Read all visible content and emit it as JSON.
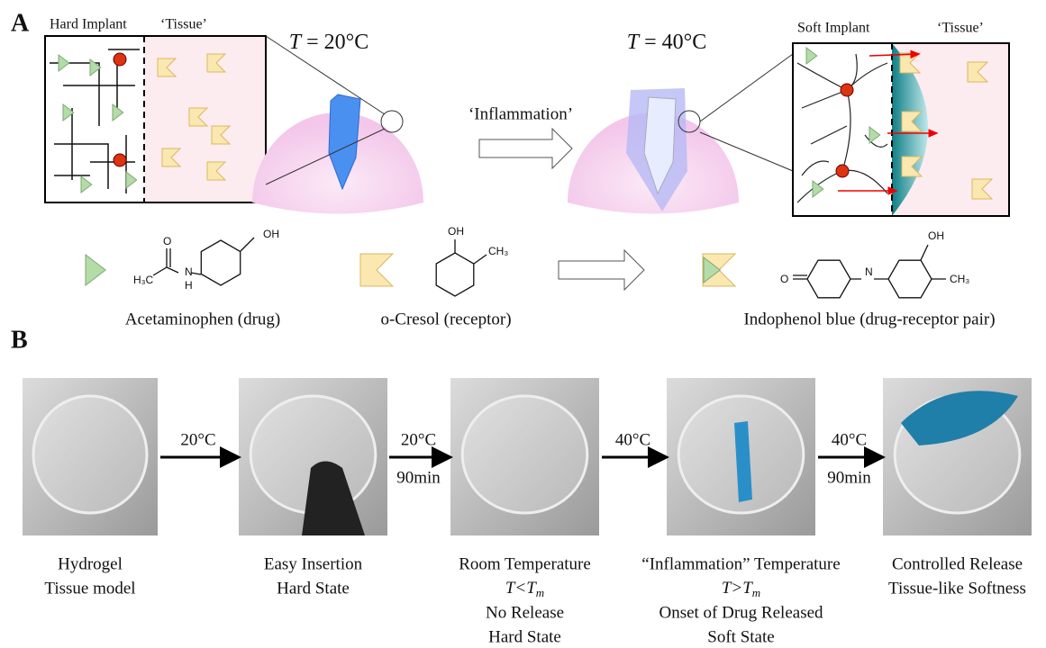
{
  "panel_a": {
    "label": "A",
    "hard_box": {
      "implant": "Hard Implant",
      "tissue": "‘Tissue’"
    },
    "soft_box": {
      "implant": "Soft Implant",
      "tissue": "‘Tissue’"
    },
    "cold": {
      "symbol": "T",
      "text": "= 20°C"
    },
    "warm": {
      "symbol": "T",
      "text": "= 40°C"
    },
    "transition": "‘Inflammation’",
    "molecules": [
      {
        "caption": "Acetaminophen (drug)",
        "atoms": [
          "OH",
          "H₃C",
          "O",
          "N",
          "H"
        ]
      },
      {
        "caption": "o-Cresol (receptor)",
        "atoms": [
          "OH",
          "CH₃"
        ]
      },
      {
        "caption": "Indophenol blue (drug-receptor pair)",
        "atoms": [
          "O",
          "N",
          "OH",
          "CH₃"
        ]
      }
    ]
  },
  "panel_b": {
    "label": "B",
    "arrows": [
      {
        "lines": [
          "20°C"
        ]
      },
      {
        "lines": [
          "20°C",
          "90min"
        ]
      },
      {
        "lines": [
          "40°C"
        ]
      },
      {
        "lines": [
          "40°C",
          "90min"
        ]
      }
    ],
    "steps": [
      {
        "lines": [
          "Hydrogel",
          "Tissue model"
        ]
      },
      {
        "lines": [
          "Easy Insertion",
          "Hard State"
        ]
      },
      {
        "lines": [
          "Room Temperature",
          {
            "symbol": "T<T",
            "subscript": "m"
          },
          "No Release",
          "Hard State"
        ]
      },
      {
        "lines": [
          "“Inflammation” Temperature",
          {
            "symbol": "T>T",
            "subscript": "m"
          },
          "Onset of Drug Released",
          "Soft State"
        ]
      },
      {
        "lines": [
          "Controlled Release",
          "Tissue-like Softness"
        ]
      }
    ]
  }
}
